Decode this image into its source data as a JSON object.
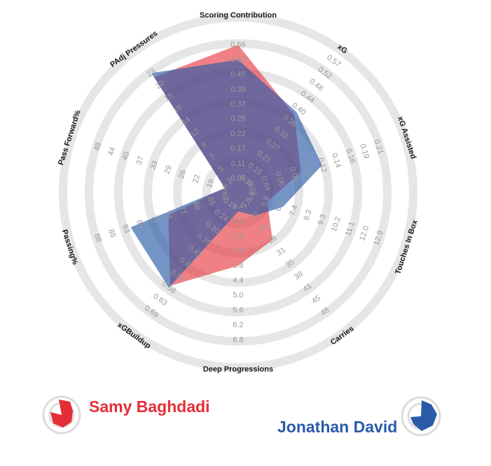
{
  "colors": {
    "ring": "#e6e6e6",
    "player1": "#e52d36",
    "player2": "#2b5ba8",
    "overlap": "#4a4f8a"
  },
  "players": [
    {
      "name": "Samy Baghdadi",
      "badge_icon": "red-radar-badge-icon"
    },
    {
      "name": "Jonathan David",
      "badge_icon": "blue-radar-badge-icon"
    }
  ],
  "chart_data": {
    "type": "radar",
    "axes": [
      {
        "label": "Scoring Contribution",
        "ticks": [
          "0.06",
          "0.11",
          "0.17",
          "0.22",
          "0.28",
          "0.33",
          "0.39",
          "0.45",
          "0.50",
          "0.56"
        ]
      },
      {
        "label": "xG",
        "ticks": [
          "0.10",
          "0.15",
          "0.21",
          "0.27",
          "0.32",
          "0.36",
          "0.40",
          "0.44",
          "0.48",
          "0.52",
          "0.57"
        ]
      },
      {
        "label": "xG Assisted",
        "ticks": [
          "0.02",
          "0.04",
          "0.06",
          "0.08",
          "0.10",
          "0.12",
          "0.14",
          "0.16",
          "0.19",
          "0.21"
        ]
      },
      {
        "label": "Touches In Box",
        "ticks": [
          "4.6",
          "5.6",
          "6.5",
          "7.4",
          "8.3",
          "9.3",
          "10.2",
          "11.1",
          "12.0",
          "12.9"
        ]
      },
      {
        "label": "Carries",
        "ticks": [
          "17",
          "21",
          "24",
          "28",
          "31",
          "35",
          "38",
          "41",
          "45",
          "48"
        ]
      },
      {
        "label": "Deep Progressions",
        "ticks": [
          "1.4",
          "2.0",
          "2.6",
          "3.2",
          "3.8",
          "4.4",
          "5.0",
          "5.6",
          "6.2",
          "6.8"
        ]
      },
      {
        "label": "xGBuildup",
        "ticks": [
          "0.19",
          "0.24",
          "0.30",
          "0.35",
          "0.41",
          "0.47",
          "0.52",
          "0.58",
          "0.63",
          "0.69"
        ]
      },
      {
        "label": "Passing%",
        "ticks": [
          "62",
          "65",
          "68",
          "71",
          "74",
          "77",
          "80",
          "83",
          "85",
          "88"
        ]
      },
      {
        "label": "Pass Forward%",
        "ticks": [
          "15",
          "19",
          "22",
          "26",
          "29",
          "33",
          "37",
          "40",
          "44",
          "48"
        ]
      },
      {
        "label": "PAdj Pressures",
        "ticks": [
          "2",
          "5",
          "7",
          "9",
          "12",
          "14",
          "16",
          "18",
          "20",
          "23"
        ]
      }
    ],
    "scale_max_ticks": 10,
    "series": [
      {
        "name": "Samy Baghdadi",
        "values": [
          0.56,
          0.38,
          0.09,
          5.7,
          28,
          3.8,
          0.57,
          74,
          15,
          22
        ]
      },
      {
        "name": "Jonathan David",
        "values": [
          0.5,
          0.39,
          0.12,
          6.7,
          21,
          1.6,
          0.58,
          82,
          15,
          23
        ]
      }
    ]
  }
}
